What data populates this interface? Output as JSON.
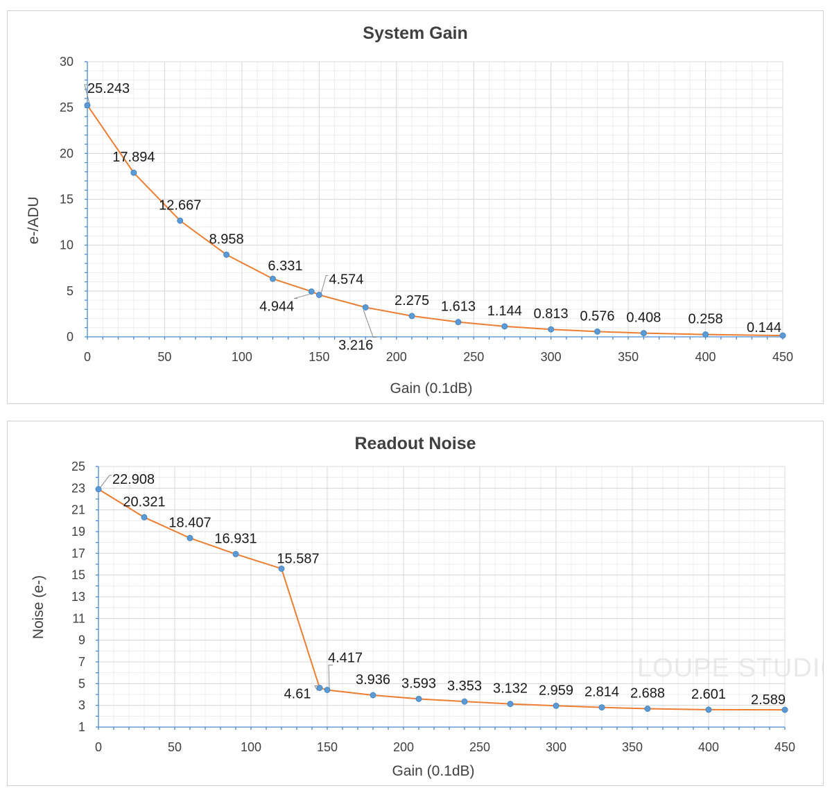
{
  "colors": {
    "series": "#ed7d31",
    "marker": "#5b9bd5",
    "axis": "#4a8ad4"
  },
  "watermark": "LOUPE STUDIO",
  "chart_data": [
    {
      "type": "line",
      "title": "System Gain",
      "xlabel": "Gain (0.1dB)",
      "ylabel": "e-/ADU",
      "xlim": [
        0,
        450
      ],
      "ylim": [
        0,
        30
      ],
      "xticks": [
        0,
        50,
        100,
        150,
        200,
        250,
        300,
        350,
        400,
        450
      ],
      "yticks": [
        0,
        5,
        10,
        15,
        20,
        25,
        30
      ],
      "grid": true,
      "x": [
        0,
        30,
        60,
        90,
        120,
        145,
        150,
        180,
        210,
        240,
        270,
        300,
        330,
        360,
        400,
        450
      ],
      "y": [
        25.243,
        17.894,
        12.667,
        8.958,
        6.331,
        4.944,
        4.574,
        3.216,
        2.275,
        1.613,
        1.144,
        0.813,
        0.576,
        0.408,
        0.258,
        0.144
      ],
      "labels": [
        "25.243",
        "17.894",
        "12.667",
        "8.958",
        "6.331",
        "4.944",
        "4.574",
        "3.216",
        "2.275",
        "1.613",
        "1.144",
        "0.813",
        "0.576",
        "0.408",
        "0.258",
        "0.144"
      ]
    },
    {
      "type": "line",
      "title": "Readout Noise",
      "xlabel": "Gain (0.1dB)",
      "ylabel": "Noise (e-)",
      "xlim": [
        0,
        450
      ],
      "ylim": [
        1,
        25
      ],
      "xticks": [
        0,
        50,
        100,
        150,
        200,
        250,
        300,
        350,
        400,
        450
      ],
      "yticks": [
        1,
        3,
        5,
        7,
        9,
        11,
        13,
        15,
        17,
        19,
        21,
        23,
        25
      ],
      "grid": true,
      "x": [
        0,
        30,
        60,
        90,
        120,
        145,
        150,
        180,
        210,
        240,
        270,
        300,
        330,
        360,
        400,
        450
      ],
      "y": [
        22.908,
        20.321,
        18.407,
        16.931,
        15.587,
        4.61,
        4.417,
        3.936,
        3.593,
        3.353,
        3.132,
        2.959,
        2.814,
        2.688,
        2.601,
        2.589
      ],
      "labels": [
        "22.908",
        "20.321",
        "18.407",
        "16.931",
        "15.587",
        "4.61",
        "4.417",
        "3.936",
        "3.593",
        "3.353",
        "3.132",
        "2.959",
        "2.814",
        "2.688",
        "2.601",
        "2.589"
      ]
    }
  ]
}
